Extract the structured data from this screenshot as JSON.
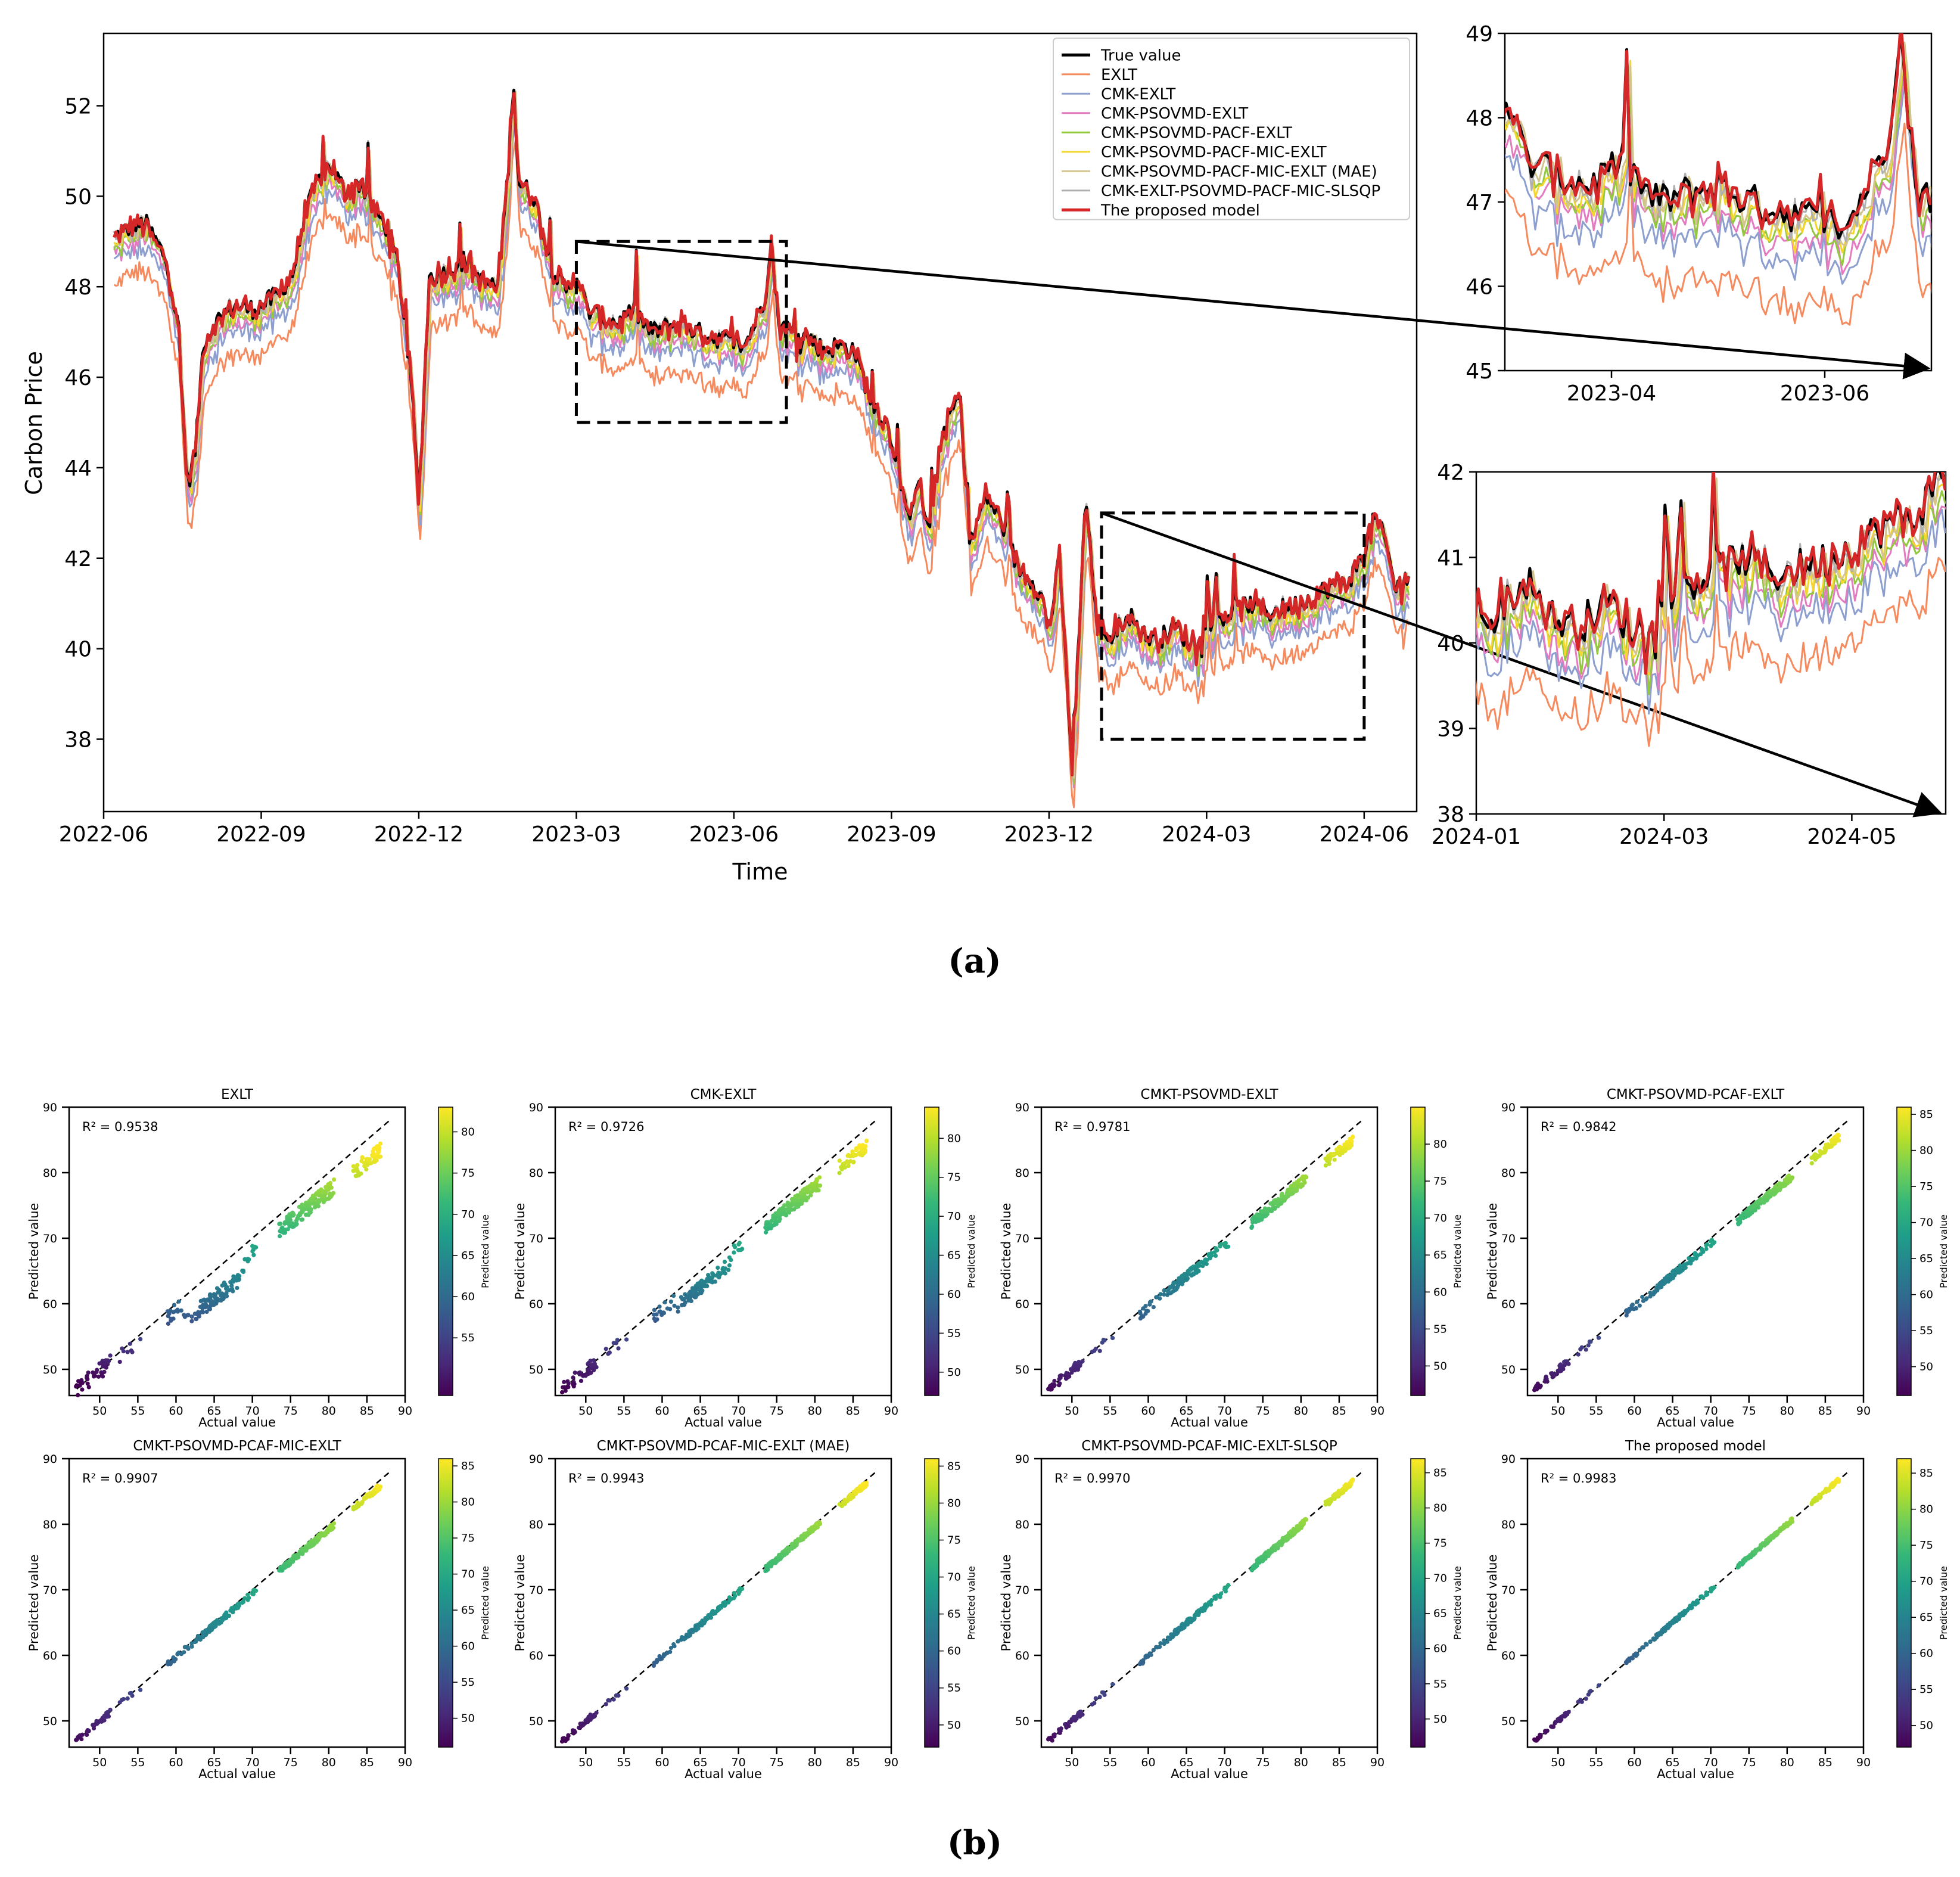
{
  "figure": {
    "label_a": "(a)",
    "label_b": "(b)"
  },
  "chart_data": [
    {
      "id": "main",
      "type": "line",
      "title": "",
      "xlabel": "Time",
      "ylabel": "Carbon Price",
      "xlim": [
        0,
        25
      ],
      "ylim": [
        36.4,
        53.6
      ],
      "xtick_values": [
        0,
        3,
        6,
        9,
        12,
        15,
        18,
        21,
        24
      ],
      "xtick_labels": [
        "2022-06",
        "2022-09",
        "2022-12",
        "2023-03",
        "2023-06",
        "2023-09",
        "2023-12",
        "2024-03",
        "2024-06"
      ],
      "yticks": [
        38,
        40,
        42,
        44,
        46,
        48,
        50,
        52
      ],
      "legend_location": "top-right",
      "true_series_anchors": [
        [
          0.2,
          49.1
        ],
        [
          0.5,
          49.3
        ],
        [
          0.8,
          49.4
        ],
        [
          1.0,
          49.0
        ],
        [
          1.2,
          48.6
        ],
        [
          1.4,
          47.2
        ],
        [
          1.6,
          43.6
        ],
        [
          1.75,
          44.4
        ],
        [
          1.9,
          46.8
        ],
        [
          2.2,
          47.3
        ],
        [
          2.5,
          47.6
        ],
        [
          2.8,
          47.5
        ],
        [
          3.0,
          47.6
        ],
        [
          3.3,
          47.8
        ],
        [
          3.6,
          48.3
        ],
        [
          3.9,
          49.8
        ],
        [
          4.1,
          50.4
        ],
        [
          4.3,
          50.7
        ],
        [
          4.6,
          50.1
        ],
        [
          4.9,
          50.3
        ],
        [
          5.1,
          49.8
        ],
        [
          5.4,
          49.3
        ],
        [
          5.6,
          48.5
        ],
        [
          5.85,
          46.0
        ],
        [
          6.0,
          43.2
        ],
        [
          6.2,
          48.2
        ],
        [
          6.6,
          48.4
        ],
        [
          6.9,
          48.6
        ],
        [
          7.2,
          48.1
        ],
        [
          7.5,
          48.0
        ],
        [
          7.7,
          50.5
        ],
        [
          7.8,
          52.7
        ],
        [
          7.9,
          50.3
        ],
        [
          8.2,
          50.0
        ],
        [
          8.5,
          48.5
        ],
        [
          8.8,
          47.9
        ],
        [
          9.0,
          48.3
        ],
        [
          9.2,
          47.5
        ],
        [
          9.5,
          47.3
        ],
        [
          9.8,
          47.2
        ],
        [
          10.1,
          47.5
        ],
        [
          10.4,
          47.0
        ],
        [
          10.7,
          47.1
        ],
        [
          11.0,
          47.2
        ],
        [
          11.3,
          47.0
        ],
        [
          11.6,
          46.9
        ],
        [
          11.9,
          46.8
        ],
        [
          12.2,
          46.7
        ],
        [
          12.4,
          47.2
        ],
        [
          12.6,
          47.8
        ],
        [
          12.7,
          49.1
        ],
        [
          12.85,
          47.2
        ],
        [
          13.1,
          47.0
        ],
        [
          13.4,
          46.9
        ],
        [
          13.7,
          46.6
        ],
        [
          14.0,
          46.7
        ],
        [
          14.3,
          46.6
        ],
        [
          14.6,
          45.5
        ],
        [
          14.9,
          45.0
        ],
        [
          15.1,
          44.2
        ],
        [
          15.3,
          42.8
        ],
        [
          15.5,
          43.8
        ],
        [
          15.7,
          42.6
        ],
        [
          16.0,
          44.9
        ],
        [
          16.3,
          45.6
        ],
        [
          16.5,
          42.3
        ],
        [
          16.8,
          43.4
        ],
        [
          17.1,
          42.8
        ],
        [
          17.4,
          41.8
        ],
        [
          17.7,
          41.5
        ],
        [
          17.9,
          41.0
        ],
        [
          18.0,
          40.4
        ],
        [
          18.2,
          42.0
        ],
        [
          18.45,
          37.2
        ],
        [
          18.6,
          41.2
        ],
        [
          18.7,
          43.4
        ],
        [
          18.9,
          40.6
        ],
        [
          19.2,
          40.2
        ],
        [
          19.5,
          40.8
        ],
        [
          19.8,
          40.3
        ],
        [
          20.1,
          40.2
        ],
        [
          20.4,
          40.5
        ],
        [
          20.7,
          40.1
        ],
        [
          21.0,
          40.6
        ],
        [
          21.3,
          40.7
        ],
        [
          21.6,
          40.9
        ],
        [
          21.9,
          41.0
        ],
        [
          22.2,
          40.8
        ],
        [
          22.5,
          40.9
        ],
        [
          22.8,
          41.0
        ],
        [
          23.1,
          41.2
        ],
        [
          23.4,
          41.4
        ],
        [
          23.7,
          41.5
        ],
        [
          24.0,
          42.1
        ],
        [
          24.2,
          42.9
        ],
        [
          24.4,
          42.4
        ],
        [
          24.6,
          41.3
        ],
        [
          24.8,
          41.6
        ],
        [
          25.0,
          41.4
        ]
      ],
      "series": [
        {
          "name": "True value",
          "color": "#000000",
          "offset": 0.0,
          "scale": 0.0,
          "lag": 0
        },
        {
          "name": "EXLT",
          "color": "#f58a5e",
          "offset": -1.05,
          "scale": 0.75,
          "lag": 1
        },
        {
          "name": "CMK-EXLT",
          "color": "#8c9fcf",
          "offset": -0.55,
          "scale": 0.85,
          "lag": 1
        },
        {
          "name": "CMK-PSOVMD-EXLT",
          "color": "#e27bc0",
          "offset": -0.35,
          "scale": 0.9,
          "lag": 1
        },
        {
          "name": "CMK-PSOVMD-PACF-EXLT",
          "color": "#93c83f",
          "offset": -0.25,
          "scale": 0.92,
          "lag": 1
        },
        {
          "name": "CMK-PSOVMD-PACF-MIC-EXLT",
          "color": "#f5d62e",
          "offset": -0.15,
          "scale": 0.95,
          "lag": 1
        },
        {
          "name": "CMK-PSOVMD-PACF-MIC-EXLT (MAE)",
          "color": "#d3c38f",
          "offset": -0.08,
          "scale": 0.97,
          "lag": 1
        },
        {
          "name": "CMK-EXLT-PSOVMD-PACF-MIC-SLSQP",
          "color": "#b0b0b0",
          "offset": -0.04,
          "scale": 0.98,
          "lag": 0
        },
        {
          "name": "The proposed model",
          "color": "#d62728",
          "offset": 0.0,
          "scale": 0.99,
          "lag": 0
        }
      ],
      "zoom_boxes": [
        {
          "x": [
            9.0,
            13.0
          ],
          "y": [
            45,
            49
          ]
        },
        {
          "x": [
            19.0,
            24.0
          ],
          "y": [
            38,
            43
          ]
        }
      ]
    },
    {
      "id": "inset_top",
      "type": "line",
      "xlim": [
        9.0,
        13.0
      ],
      "ylim": [
        45,
        49
      ],
      "xtick_values": [
        10.0,
        12.0
      ],
      "xtick_labels": [
        "2023-04",
        "2023-06"
      ],
      "yticks": [
        45,
        46,
        47,
        48,
        49
      ]
    },
    {
      "id": "inset_bottom",
      "type": "line",
      "xlim": [
        19.0,
        24.0
      ],
      "ylim": [
        38,
        42
      ],
      "xtick_values": [
        19.0,
        21.0,
        23.0
      ],
      "xtick_labels": [
        "2024-01",
        "2024-03",
        "2024-05"
      ],
      "yticks": [
        38,
        39,
        40,
        41,
        42
      ]
    },
    {
      "id": "scatter_grid",
      "type": "scatter",
      "xlabel": "Actual value",
      "ylabel": "Predicted value",
      "colorbar_label": "Predicted value",
      "xlim": [
        46,
        90
      ],
      "ylim": [
        46,
        90
      ],
      "xticks": [
        50,
        55,
        60,
        65,
        70,
        75,
        80,
        85,
        90
      ],
      "yticks": [
        50,
        60,
        70,
        80,
        90
      ],
      "panels": [
        {
          "title": "EXLT",
          "r2": "R² = 0.9538",
          "spread": 1.2,
          "bias": -2.2,
          "cbar": [
            48,
            83
          ],
          "cbar_ticks": [
            55,
            60,
            65,
            70,
            75,
            80
          ]
        },
        {
          "title": "CMK-EXLT",
          "r2": "R² = 0.9726",
          "spread": 1.0,
          "bias": -1.7,
          "cbar": [
            47,
            84
          ],
          "cbar_ticks": [
            50,
            55,
            60,
            65,
            70,
            75,
            80
          ]
        },
        {
          "title": "CMKT-PSOVMD-EXLT",
          "r2": "R² = 0.9781",
          "spread": 0.7,
          "bias": -1.2,
          "cbar": [
            46,
            85
          ],
          "cbar_ticks": [
            50,
            55,
            60,
            65,
            70,
            75,
            80
          ]
        },
        {
          "title": "CMKT-PSOVMD-PCAF-EXLT",
          "r2": "R² = 0.9842",
          "spread": 0.55,
          "bias": -0.9,
          "cbar": [
            46,
            86
          ],
          "cbar_ticks": [
            50,
            55,
            60,
            65,
            70,
            75,
            80,
            85
          ]
        },
        {
          "title": "CMKT-PSOVMD-PCAF-MIC-EXLT",
          "r2": "R² = 0.9907",
          "spread": 0.45,
          "bias": -0.6,
          "cbar": [
            46,
            86
          ],
          "cbar_ticks": [
            50,
            55,
            60,
            65,
            70,
            75,
            80,
            85
          ]
        },
        {
          "title": "CMKT-PSOVMD-PCAF-MIC-EXLT (MAE)",
          "r2": "R² = 0.9943",
          "spread": 0.4,
          "bias": -0.35,
          "cbar": [
            47,
            86
          ],
          "cbar_ticks": [
            50,
            55,
            60,
            65,
            70,
            75,
            80,
            85
          ]
        },
        {
          "title": "CMKT-PSOVMD-PCAF-MIC-EXLT-SLSQP",
          "r2": "R² = 0.9970",
          "spread": 0.45,
          "bias": -0.15,
          "cbar": [
            46,
            87
          ],
          "cbar_ticks": [
            50,
            55,
            60,
            65,
            70,
            75,
            80,
            85
          ]
        },
        {
          "title": "The proposed model",
          "r2": "R² = 0.9983",
          "spread": 0.3,
          "bias": 0.0,
          "cbar": [
            47,
            87
          ],
          "cbar_ticks": [
            50,
            55,
            60,
            65,
            70,
            75,
            80,
            85
          ]
        }
      ]
    }
  ]
}
